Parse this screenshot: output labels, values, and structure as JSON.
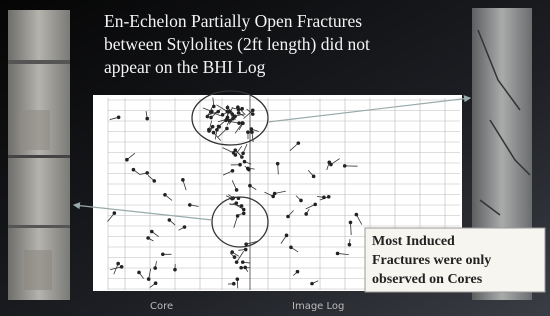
{
  "slide": {
    "title_lines": [
      "En-Echelon Partially Open Fractures",
      "between Stylolites (2ft length) did not",
      "appear on the BHI Log"
    ],
    "callout_lines": [
      "Most Induced",
      "Fractures were only",
      "observed on Cores"
    ],
    "plot_labels": [
      "Core",
      "Image Log"
    ]
  }
}
